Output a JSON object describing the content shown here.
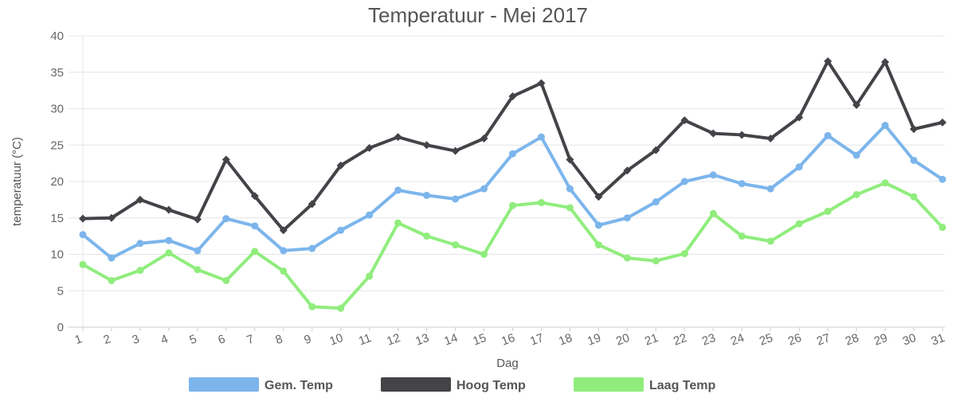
{
  "chart_data": {
    "type": "line",
    "title": "Temperatuur - Mei 2017",
    "xlabel": "Dag",
    "ylabel": "temperatuur (°C)",
    "ylim": [
      0,
      40
    ],
    "yticks": [
      0,
      5,
      10,
      15,
      20,
      25,
      30,
      35,
      40
    ],
    "grid": true,
    "legend_position": "bottom",
    "categories": [
      "1",
      "2",
      "3",
      "4",
      "5",
      "6",
      "7",
      "8",
      "9",
      "10",
      "11",
      "12",
      "13",
      "14",
      "15",
      "16",
      "17",
      "18",
      "19",
      "20",
      "21",
      "22",
      "23",
      "24",
      "25",
      "26",
      "27",
      "28",
      "29",
      "30",
      "31"
    ],
    "series": [
      {
        "name": "Gem. Temp",
        "color": "#7cb5ec",
        "values": [
          12.7,
          9.5,
          11.5,
          11.9,
          10.5,
          14.9,
          13.9,
          10.5,
          10.8,
          13.3,
          15.4,
          18.8,
          18.1,
          17.6,
          19.0,
          23.8,
          26.1,
          19.0,
          14.0,
          15.0,
          17.2,
          20.0,
          20.9,
          19.7,
          19.0,
          22.0,
          26.3,
          23.6,
          27.7,
          22.9,
          20.3
        ]
      },
      {
        "name": "Hoog Temp",
        "color": "#434348",
        "values": [
          14.9,
          15.0,
          17.5,
          16.1,
          14.8,
          23.0,
          18.0,
          13.3,
          16.9,
          22.2,
          24.6,
          26.1,
          25.0,
          24.2,
          25.9,
          31.7,
          33.5,
          23.0,
          17.9,
          21.5,
          24.3,
          28.4,
          26.6,
          26.4,
          25.9,
          28.8,
          36.5,
          30.5,
          36.4,
          27.2,
          28.1
        ]
      },
      {
        "name": "Laag Temp",
        "color": "#90ed7d",
        "values": [
          8.6,
          6.4,
          7.8,
          10.2,
          7.9,
          6.4,
          10.4,
          7.7,
          2.8,
          2.6,
          7.0,
          14.3,
          12.5,
          11.3,
          10.0,
          16.7,
          17.1,
          16.4,
          11.3,
          9.5,
          9.1,
          10.1,
          15.6,
          12.5,
          11.8,
          14.2,
          15.9,
          18.2,
          19.8,
          17.9,
          13.7
        ]
      }
    ]
  }
}
